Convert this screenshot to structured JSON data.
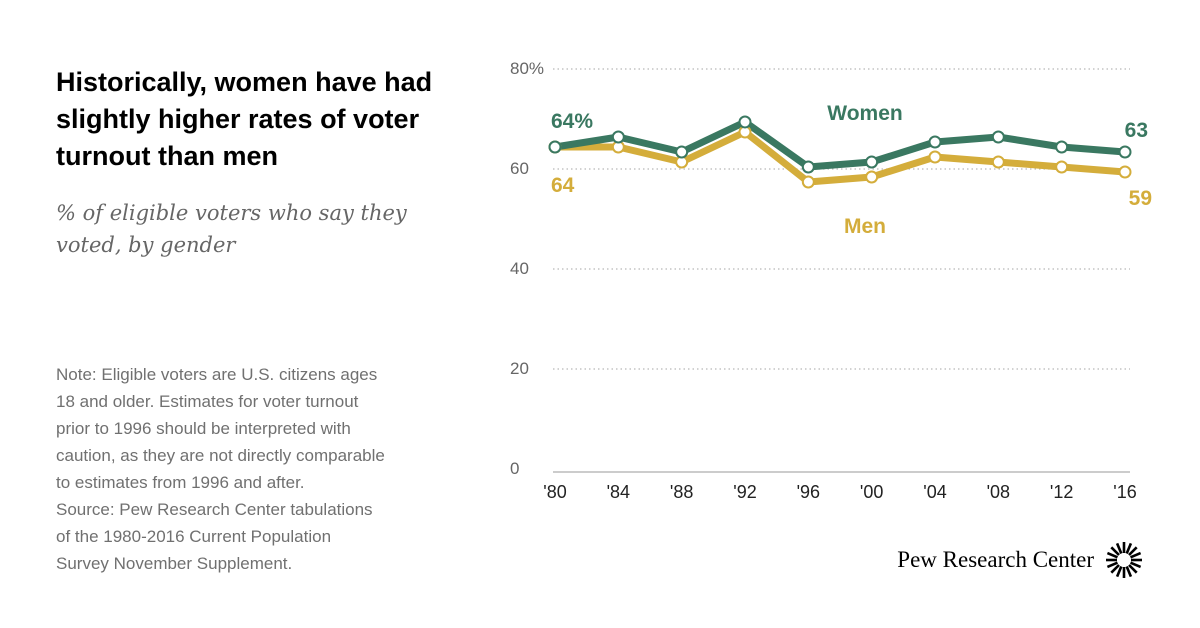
{
  "header": {
    "title": "Historically, women have had slightly higher rates of voter turnout than men",
    "subtitle": "% of eligible voters who say they voted, by gender"
  },
  "note_lines": [
    "Note: Eligible voters are U.S. citizens ages",
    "18 and older. Estimates for voter turnout",
    "prior to 1996 should be interpreted with",
    "caution, as they are not directly comparable",
    "to estimates from 1996 and after.",
    "Source: Pew Research Center tabulations",
    "of the 1980-2016 Current Population",
    "Survey November Supplement."
  ],
  "footer": {
    "logo_text": "Pew Research Center",
    "logo_icon": "pew-sunburst-icon"
  },
  "colors": {
    "women": "#3a7861",
    "men": "#d4ad3b",
    "grid": "#b8b8b8",
    "axis_text": "#666666"
  },
  "chart_data": {
    "type": "line",
    "x": [
      "'80",
      "'84",
      "'88",
      "'92",
      "'96",
      "'00",
      "'04",
      "'08",
      "'12",
      "'16"
    ],
    "y_ticks": [
      "80%",
      "60",
      "40",
      "20",
      "0"
    ],
    "ylim": [
      0,
      80
    ],
    "grid": true,
    "series": [
      {
        "name": "Women",
        "values": [
          64,
          66,
          63,
          69,
          60,
          61,
          65,
          66,
          64,
          63
        ]
      },
      {
        "name": "Men",
        "values": [
          64,
          64,
          61,
          67,
          57,
          58,
          62,
          61,
          60,
          59
        ]
      }
    ],
    "annotations": {
      "women_first": "64%",
      "women_last": "63",
      "men_first": "64",
      "men_last": "59"
    }
  }
}
